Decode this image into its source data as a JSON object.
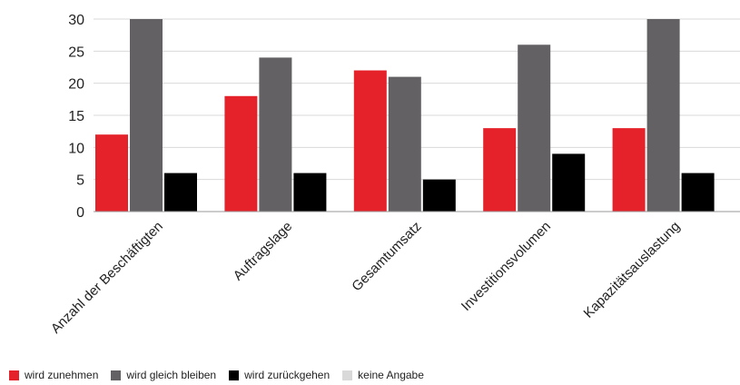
{
  "chart_data": {
    "type": "bar",
    "title": "",
    "xlabel": "",
    "ylabel": "",
    "ylim": [
      0,
      30
    ],
    "yticks": [
      0,
      5,
      10,
      15,
      20,
      25,
      30
    ],
    "grid": true,
    "legend_placement": "bottom-left",
    "categories": [
      "Anzahl der Beschäftigten",
      "Auftragslage",
      "Gesamtumsatz",
      "Investitionsvolumen",
      "Kapazitätsauslastung"
    ],
    "series": [
      {
        "name": "wird zunehmen",
        "color": "#e5212a",
        "values": [
          12,
          18,
          22,
          13,
          13
        ]
      },
      {
        "name": "wird gleich bleiben",
        "color": "#646164",
        "values": [
          30,
          24,
          21,
          26,
          30
        ]
      },
      {
        "name": "wird zurückgehen",
        "color": "#000000",
        "values": [
          6,
          6,
          5,
          9,
          6
        ]
      },
      {
        "name": "keine Angabe",
        "color": "#d9d9d9",
        "values": [
          0,
          0,
          0,
          0,
          0
        ]
      }
    ]
  }
}
